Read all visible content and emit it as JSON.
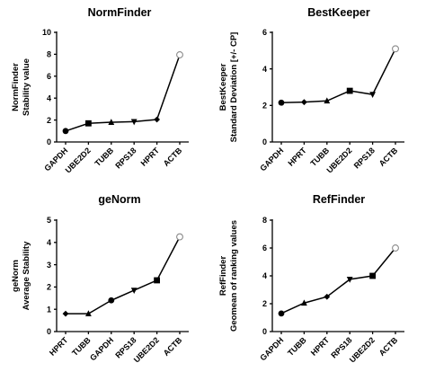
{
  "chart_data": [
    {
      "type": "line",
      "title": "NormFinder",
      "ylabel_lines": [
        "NormFinder",
        "Stability value"
      ],
      "ylim": [
        0,
        10
      ],
      "yticks": [
        0,
        2,
        4,
        6,
        8,
        10
      ],
      "categories": [
        "GAPDH",
        "UBE2D2",
        "TUBB",
        "RPS18",
        "HPRT",
        "ACTB"
      ],
      "values": [
        1.0,
        1.7,
        1.8,
        1.85,
        2.05,
        7.95
      ],
      "markers": [
        "circle",
        "square",
        "triangle-up",
        "triangle-down",
        "diamond",
        "open-circle"
      ]
    },
    {
      "type": "line",
      "title": "BestKeeper",
      "ylabel_lines": [
        "BestKeeper",
        "Standard  Deviation [+/- CP]"
      ],
      "ylim": [
        0,
        6
      ],
      "yticks": [
        0,
        2,
        4,
        6
      ],
      "categories": [
        "GAPDH",
        "HPRT",
        "TUBB",
        "UBE2D2",
        "RPS18",
        "ACTB"
      ],
      "values": [
        2.15,
        2.18,
        2.25,
        2.8,
        2.6,
        5.1
      ],
      "markers": [
        "circle",
        "diamond",
        "triangle-up",
        "square",
        "triangle-down",
        "open-circle"
      ]
    },
    {
      "type": "line",
      "title": "geNorm",
      "ylabel_lines": [
        "geNorm",
        "Average Stability"
      ],
      "ylim": [
        0,
        5
      ],
      "yticks": [
        0,
        1,
        2,
        3,
        4,
        5
      ],
      "categories": [
        "HPRT",
        "TUBB",
        "GAPDH",
        "RPS18",
        "UBE2D2",
        "ACTB"
      ],
      "values": [
        0.8,
        0.8,
        1.4,
        1.85,
        2.3,
        4.25
      ],
      "markers": [
        "diamond",
        "triangle-up",
        "circle",
        "triangle-down",
        "square",
        "open-circle"
      ]
    },
    {
      "type": "line",
      "title": "RefFinder",
      "ylabel_lines": [
        "RefFinder",
        "Geomean of ranking values"
      ],
      "ylim": [
        0,
        8
      ],
      "yticks": [
        0,
        2,
        4,
        6,
        8
      ],
      "categories": [
        "GAPDH",
        "TUBB",
        "HPRT",
        "RPS18",
        "UBE2D2",
        "ACTB"
      ],
      "values": [
        1.3,
        2.05,
        2.5,
        3.75,
        4.0,
        6.0
      ],
      "markers": [
        "circle",
        "triangle-up",
        "diamond",
        "triangle-down",
        "square",
        "open-circle"
      ]
    }
  ]
}
